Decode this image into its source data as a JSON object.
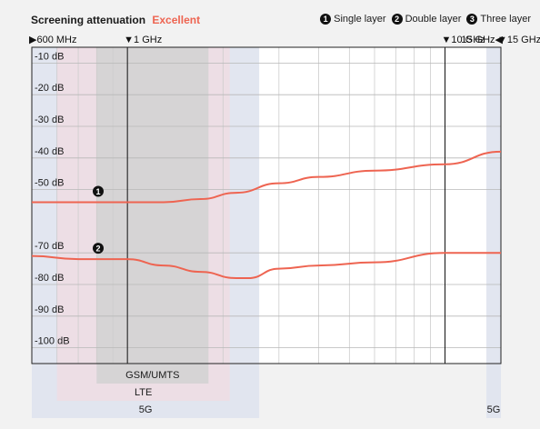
{
  "title": {
    "label": "Screening attenuation",
    "rating": "Excellent"
  },
  "legend": [
    {
      "num": "1",
      "label": "Single layer"
    },
    {
      "num": "2",
      "label": "Double layer"
    },
    {
      "num": "3",
      "label": "Three layer"
    }
  ],
  "colors": {
    "curve": "#ee6451",
    "rating": "#ee6451",
    "band_5g": "#dfe3ee",
    "band_lte": "#eedde3",
    "band_gsm": "#d3d3d3"
  },
  "chart_data": {
    "type": "line",
    "ylim": [
      -105,
      -5
    ],
    "xlim_mhz": [
      500,
      15000
    ],
    "x_scale": "log",
    "y_ticks": [
      -10,
      -20,
      -30,
      -40,
      -50,
      -70,
      -80,
      -90,
      -100
    ],
    "y_tick_labels": [
      "-10 dB",
      "-20 dB",
      "-30 dB",
      "-40 dB",
      "-50 dB",
      "-70 dB",
      "-80 dB",
      "-90 dB",
      "-100 dB"
    ],
    "freq_markers": [
      {
        "label": "600 MHz",
        "freq_mhz": 600,
        "arrow": "right",
        "side": "left"
      },
      {
        "label": "1 GHz",
        "freq_mhz": 1000,
        "arrow": "down",
        "side": "right"
      },
      {
        "label": "10 GHz",
        "freq_mhz": 10000,
        "arrow": "down",
        "side": "right"
      },
      {
        "label": "15 GHz",
        "freq_mhz": 15000,
        "arrow": "down",
        "side": "right"
      },
      {
        "label": "15 GHz",
        "freq_mhz": 15000,
        "arrow": "left",
        "side": "left"
      }
    ],
    "bands": [
      {
        "name": "5G",
        "from_mhz": 500,
        "to_mhz": 2600
      },
      {
        "name": "LTE",
        "from_mhz": 600,
        "to_mhz": 2100
      },
      {
        "name": "GSM/UMTS",
        "from_mhz": 800,
        "to_mhz": 1800
      },
      {
        "name": "5G",
        "from_mhz": 13500,
        "to_mhz": 15000
      }
    ],
    "series": [
      {
        "marker": "1",
        "x": [
          500,
          700,
          1000,
          1300,
          1700,
          2200,
          3000,
          4000,
          6000,
          10000,
          15000
        ],
        "y": [
          -54,
          -54,
          -54,
          -54,
          -53,
          -51,
          -48,
          -46,
          -44,
          -42,
          -38
        ]
      },
      {
        "marker": "2",
        "x": [
          500,
          700,
          1000,
          1300,
          1700,
          2200,
          2400,
          3000,
          4000,
          6000,
          10000,
          15000
        ],
        "y": [
          -71,
          -72,
          -72,
          -74,
          -76,
          -78,
          -78,
          -75,
          -74,
          -73,
          -70,
          -70
        ]
      }
    ]
  }
}
